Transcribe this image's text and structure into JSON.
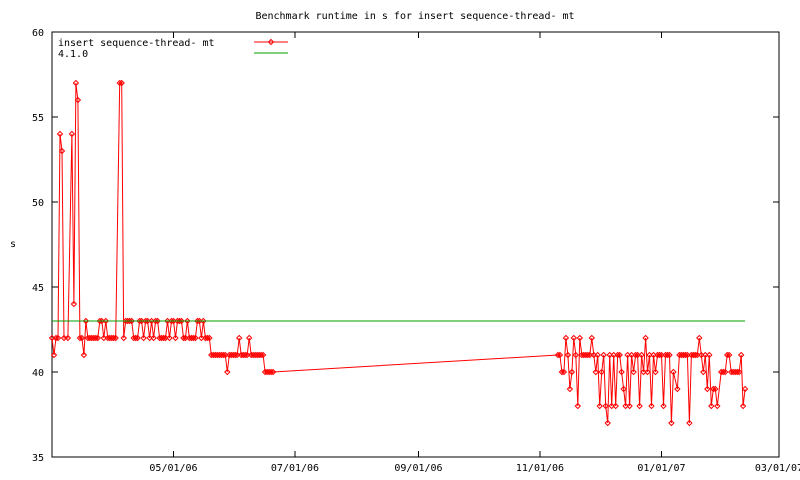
{
  "chart_data": {
    "type": "line",
    "title": "Benchmark runtime in s for insert sequence-thread-  mt",
    "xlabel": "",
    "ylabel": "s",
    "ylim": [
      35,
      60
    ],
    "xlim": [
      "2006-03-01",
      "2007-03-01"
    ],
    "yticks": [
      "35",
      "40",
      "45",
      "50",
      "55",
      "60"
    ],
    "xticks": [
      {
        "date": "2006-05-01",
        "label": "05/01/06"
      },
      {
        "date": "2006-07-01",
        "label": "07/01/06"
      },
      {
        "date": "2006-09-01",
        "label": "09/01/06"
      },
      {
        "date": "2006-11-01",
        "label": "11/01/06"
      },
      {
        "date": "2007-01-01",
        "label": "01/01/07"
      },
      {
        "date": "2007-03-01",
        "label": "03/01/07"
      }
    ],
    "grid": false,
    "legend_position": "top-left",
    "series": [
      {
        "name": "insert sequence-thread-  mt",
        "color": "#ff0000",
        "marker": "diamond",
        "points": [
          [
            "2006-03-01",
            42
          ],
          [
            "2006-03-02",
            41
          ],
          [
            "2006-03-03",
            42
          ],
          [
            "2006-03-04",
            42
          ],
          [
            "2006-03-05",
            54
          ],
          [
            "2006-03-06",
            53
          ],
          [
            "2006-03-07",
            42
          ],
          [
            "2006-03-09",
            42
          ],
          [
            "2006-03-11",
            54
          ],
          [
            "2006-03-12",
            44
          ],
          [
            "2006-03-13",
            57
          ],
          [
            "2006-03-14",
            56
          ],
          [
            "2006-03-15",
            42
          ],
          [
            "2006-03-16",
            42
          ],
          [
            "2006-03-17",
            41
          ],
          [
            "2006-03-18",
            43
          ],
          [
            "2006-03-19",
            42
          ],
          [
            "2006-03-20",
            42
          ],
          [
            "2006-03-21",
            42
          ],
          [
            "2006-03-22",
            42
          ],
          [
            "2006-03-23",
            42
          ],
          [
            "2006-03-24",
            42
          ],
          [
            "2006-03-25",
            43
          ],
          [
            "2006-03-26",
            43
          ],
          [
            "2006-03-27",
            42
          ],
          [
            "2006-03-28",
            43
          ],
          [
            "2006-03-29",
            42
          ],
          [
            "2006-03-30",
            42
          ],
          [
            "2006-03-31",
            42
          ],
          [
            "2006-04-01",
            42
          ],
          [
            "2006-04-02",
            42
          ],
          [
            "2006-04-04",
            57
          ],
          [
            "2006-04-05",
            57
          ],
          [
            "2006-04-06",
            42
          ],
          [
            "2006-04-07",
            43
          ],
          [
            "2006-04-08",
            43
          ],
          [
            "2006-04-09",
            43
          ],
          [
            "2006-04-10",
            43
          ],
          [
            "2006-04-11",
            42
          ],
          [
            "2006-04-12",
            42
          ],
          [
            "2006-04-13",
            42
          ],
          [
            "2006-04-14",
            43
          ],
          [
            "2006-04-15",
            43
          ],
          [
            "2006-04-16",
            42
          ],
          [
            "2006-04-17",
            43
          ],
          [
            "2006-04-18",
            43
          ],
          [
            "2006-04-19",
            42
          ],
          [
            "2006-04-20",
            43
          ],
          [
            "2006-04-21",
            42
          ],
          [
            "2006-04-22",
            43
          ],
          [
            "2006-04-23",
            43
          ],
          [
            "2006-04-24",
            42
          ],
          [
            "2006-04-25",
            42
          ],
          [
            "2006-04-26",
            42
          ],
          [
            "2006-04-27",
            42
          ],
          [
            "2006-04-28",
            43
          ],
          [
            "2006-04-29",
            42
          ],
          [
            "2006-04-30",
            43
          ],
          [
            "2006-05-01",
            43
          ],
          [
            "2006-05-02",
            42
          ],
          [
            "2006-05-03",
            43
          ],
          [
            "2006-05-04",
            43
          ],
          [
            "2006-05-05",
            43
          ],
          [
            "2006-05-06",
            42
          ],
          [
            "2006-05-07",
            42
          ],
          [
            "2006-05-08",
            43
          ],
          [
            "2006-05-09",
            42
          ],
          [
            "2006-05-10",
            42
          ],
          [
            "2006-05-11",
            42
          ],
          [
            "2006-05-12",
            42
          ],
          [
            "2006-05-13",
            43
          ],
          [
            "2006-05-14",
            43
          ],
          [
            "2006-05-15",
            42
          ],
          [
            "2006-05-16",
            43
          ],
          [
            "2006-05-17",
            42
          ],
          [
            "2006-05-18",
            42
          ],
          [
            "2006-05-19",
            42
          ],
          [
            "2006-05-20",
            41
          ],
          [
            "2006-05-21",
            41
          ],
          [
            "2006-05-22",
            41
          ],
          [
            "2006-05-23",
            41
          ],
          [
            "2006-05-24",
            41
          ],
          [
            "2006-05-25",
            41
          ],
          [
            "2006-05-26",
            41
          ],
          [
            "2006-05-27",
            41
          ],
          [
            "2006-05-28",
            40
          ],
          [
            "2006-05-29",
            41
          ],
          [
            "2006-05-30",
            41
          ],
          [
            "2006-05-31",
            41
          ],
          [
            "2006-06-01",
            41
          ],
          [
            "2006-06-02",
            41
          ],
          [
            "2006-06-03",
            42
          ],
          [
            "2006-06-04",
            41
          ],
          [
            "2006-06-05",
            41
          ],
          [
            "2006-06-06",
            41
          ],
          [
            "2006-06-07",
            41
          ],
          [
            "2006-06-08",
            42
          ],
          [
            "2006-06-09",
            41
          ],
          [
            "2006-06-10",
            41
          ],
          [
            "2006-06-11",
            41
          ],
          [
            "2006-06-12",
            41
          ],
          [
            "2006-06-13",
            41
          ],
          [
            "2006-06-14",
            41
          ],
          [
            "2006-06-15",
            41
          ],
          [
            "2006-06-16",
            40
          ],
          [
            "2006-06-17",
            40
          ],
          [
            "2006-06-18",
            40
          ],
          [
            "2006-06-19",
            40
          ],
          [
            "2006-06-20",
            40
          ],
          [
            "2006-11-10",
            41
          ],
          [
            "2006-11-11",
            41
          ],
          [
            "2006-11-12",
            40
          ],
          [
            "2006-11-13",
            40
          ],
          [
            "2006-11-14",
            42
          ],
          [
            "2006-11-15",
            41
          ],
          [
            "2006-11-16",
            39
          ],
          [
            "2006-11-17",
            40
          ],
          [
            "2006-11-18",
            42
          ],
          [
            "2006-11-19",
            41
          ],
          [
            "2006-11-20",
            38
          ],
          [
            "2006-11-21",
            42
          ],
          [
            "2006-11-22",
            41
          ],
          [
            "2006-11-23",
            41
          ],
          [
            "2006-11-24",
            41
          ],
          [
            "2006-11-25",
            41
          ],
          [
            "2006-11-26",
            41
          ],
          [
            "2006-11-27",
            42
          ],
          [
            "2006-11-28",
            41
          ],
          [
            "2006-11-29",
            40
          ],
          [
            "2006-11-30",
            41
          ],
          [
            "2006-12-01",
            38
          ],
          [
            "2006-12-02",
            40
          ],
          [
            "2006-12-03",
            41
          ],
          [
            "2006-12-04",
            38
          ],
          [
            "2006-12-05",
            37
          ],
          [
            "2006-12-06",
            41
          ],
          [
            "2006-12-07",
            38
          ],
          [
            "2006-12-08",
            41
          ],
          [
            "2006-12-09",
            38
          ],
          [
            "2006-12-10",
            41
          ],
          [
            "2006-12-11",
            41
          ],
          [
            "2006-12-12",
            40
          ],
          [
            "2006-12-13",
            39
          ],
          [
            "2006-12-14",
            38
          ],
          [
            "2006-12-15",
            41
          ],
          [
            "2006-12-16",
            38
          ],
          [
            "2006-12-17",
            41
          ],
          [
            "2006-12-18",
            40
          ],
          [
            "2006-12-19",
            41
          ],
          [
            "2006-12-20",
            41
          ],
          [
            "2006-12-21",
            38
          ],
          [
            "2006-12-22",
            41
          ],
          [
            "2006-12-23",
            40
          ],
          [
            "2006-12-24",
            42
          ],
          [
            "2006-12-25",
            40
          ],
          [
            "2006-12-26",
            41
          ],
          [
            "2006-12-27",
            38
          ],
          [
            "2006-12-28",
            41
          ],
          [
            "2006-12-29",
            40
          ],
          [
            "2006-12-30",
            41
          ],
          [
            "2006-12-31",
            41
          ],
          [
            "2007-01-01",
            41
          ],
          [
            "2007-01-02",
            38
          ],
          [
            "2007-01-03",
            41
          ],
          [
            "2007-01-04",
            41
          ],
          [
            "2007-01-05",
            41
          ],
          [
            "2007-01-06",
            37
          ],
          [
            "2007-01-07",
            40
          ],
          [
            "2007-01-09",
            39
          ],
          [
            "2007-01-10",
            41
          ],
          [
            "2007-01-11",
            41
          ],
          [
            "2007-01-12",
            41
          ],
          [
            "2007-01-13",
            41
          ],
          [
            "2007-01-14",
            41
          ],
          [
            "2007-01-15",
            37
          ],
          [
            "2007-01-16",
            41
          ],
          [
            "2007-01-17",
            41
          ],
          [
            "2007-01-18",
            41
          ],
          [
            "2007-01-19",
            41
          ],
          [
            "2007-01-20",
            42
          ],
          [
            "2007-01-21",
            41
          ],
          [
            "2007-01-22",
            40
          ],
          [
            "2007-01-23",
            41
          ],
          [
            "2007-01-24",
            39
          ],
          [
            "2007-01-25",
            41
          ],
          [
            "2007-01-26",
            38
          ],
          [
            "2007-01-27",
            39
          ],
          [
            "2007-01-28",
            39
          ],
          [
            "2007-01-29",
            38
          ],
          [
            "2007-01-31",
            40
          ],
          [
            "2007-02-01",
            40
          ],
          [
            "2007-02-02",
            40
          ],
          [
            "2007-02-03",
            41
          ],
          [
            "2007-02-04",
            41
          ],
          [
            "2007-02-05",
            40
          ],
          [
            "2007-02-06",
            40
          ],
          [
            "2007-02-07",
            40
          ],
          [
            "2007-02-08",
            40
          ],
          [
            "2007-02-09",
            40
          ],
          [
            "2007-02-10",
            41
          ],
          [
            "2007-02-11",
            38
          ],
          [
            "2007-02-12",
            39
          ]
        ]
      },
      {
        "name": "4.1.0",
        "color": "#00a000",
        "marker": "none",
        "points": [
          [
            "2006-03-01",
            43
          ],
          [
            "2007-02-12",
            43
          ]
        ]
      }
    ]
  }
}
